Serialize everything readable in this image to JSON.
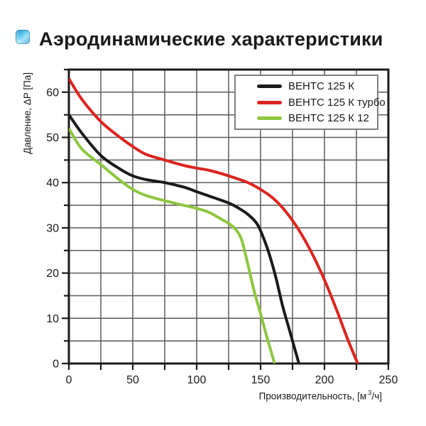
{
  "header": {
    "title": "Аэродинамические характеристики"
  },
  "chart_data": {
    "type": "line",
    "xlabel_prefix": "Производительность, [м",
    "xlabel_sup": "3",
    "xlabel_suffix": "/ч]",
    "ylabel": "Давление, ΔP [Па]",
    "xlim": [
      0,
      250
    ],
    "ylim": [
      0,
      65
    ],
    "x_ticks": [
      0,
      50,
      100,
      150,
      200,
      250
    ],
    "y_ticks": [
      0,
      10,
      20,
      30,
      40,
      50,
      60
    ],
    "x_grid_step": 25,
    "y_grid_step": 5,
    "grid": true,
    "legend_position": "top-right",
    "colors": {
      "grid": "#5a5a5a",
      "axis": "#1a1a1a",
      "legend_border": "#7f7f7f",
      "title_bullet_blue": "#2ba9e0"
    },
    "series": [
      {
        "name": "ВЕНТС 125 К",
        "color": "#1a1a1a",
        "points": [
          [
            0,
            55
          ],
          [
            10,
            51
          ],
          [
            25,
            46
          ],
          [
            40,
            43
          ],
          [
            50,
            41.5
          ],
          [
            60,
            40.7
          ],
          [
            75,
            40
          ],
          [
            90,
            39
          ],
          [
            100,
            38
          ],
          [
            110,
            37
          ],
          [
            125,
            35.5
          ],
          [
            132,
            34.5
          ],
          [
            140,
            33
          ],
          [
            147,
            31
          ],
          [
            152,
            28
          ],
          [
            157,
            24
          ],
          [
            162,
            19
          ],
          [
            167,
            13
          ],
          [
            172,
            8
          ],
          [
            176,
            4
          ],
          [
            180,
            0
          ]
        ]
      },
      {
        "name": "ВЕНТС 125 К турбо",
        "color": "#db241e",
        "points": [
          [
            0,
            63
          ],
          [
            10,
            58.5
          ],
          [
            25,
            53.5
          ],
          [
            40,
            50
          ],
          [
            50,
            48
          ],
          [
            60,
            46.3
          ],
          [
            75,
            45
          ],
          [
            90,
            43.8
          ],
          [
            100,
            43.2
          ],
          [
            110,
            42.7
          ],
          [
            125,
            41.5
          ],
          [
            140,
            40
          ],
          [
            150,
            38.5
          ],
          [
            160,
            36.5
          ],
          [
            170,
            33.5
          ],
          [
            180,
            29.5
          ],
          [
            190,
            24.5
          ],
          [
            200,
            18.5
          ],
          [
            210,
            11.5
          ],
          [
            218,
            5.5
          ],
          [
            226,
            0
          ]
        ]
      },
      {
        "name": "ВЕНТС 125 К 12",
        "color": "#8dc63f",
        "points": [
          [
            0,
            52
          ],
          [
            10,
            47.5
          ],
          [
            25,
            44
          ],
          [
            40,
            40.5
          ],
          [
            50,
            38.5
          ],
          [
            60,
            37.2
          ],
          [
            75,
            36
          ],
          [
            85,
            35.3
          ],
          [
            100,
            34.3
          ],
          [
            110,
            33.4
          ],
          [
            120,
            31.8
          ],
          [
            125,
            31
          ],
          [
            130,
            29.8
          ],
          [
            135,
            27.5
          ],
          [
            140,
            22
          ],
          [
            145,
            16
          ],
          [
            150,
            11
          ],
          [
            155,
            5.8
          ],
          [
            161,
            0
          ]
        ]
      }
    ]
  }
}
